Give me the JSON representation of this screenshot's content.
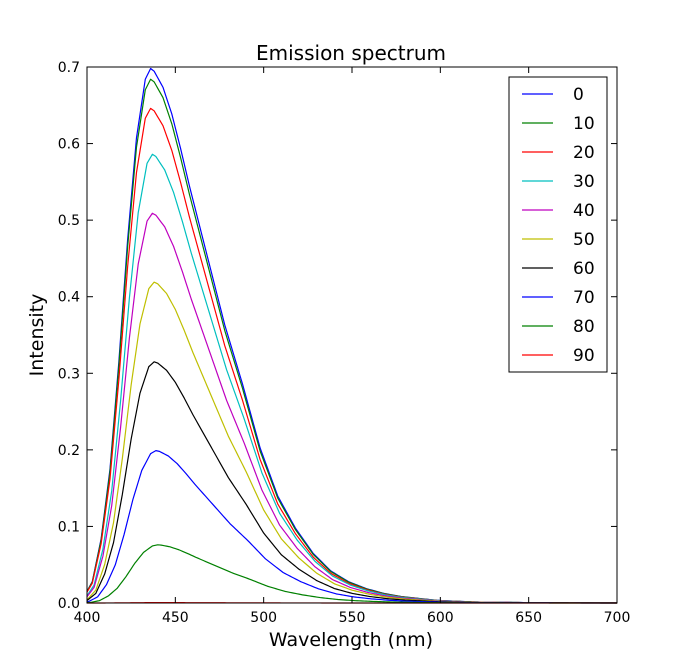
{
  "chart_data": {
    "type": "line",
    "title": "Emission spectrum",
    "xlabel": "Wavelength (nm)",
    "ylabel": "Intensity",
    "xlim": [
      400,
      700
    ],
    "ylim": [
      0.0,
      0.7
    ],
    "xticks": [
      "400",
      "450",
      "500",
      "550",
      "600",
      "650",
      "700"
    ],
    "yticks": [
      "0.0",
      "0.1",
      "0.2",
      "0.3",
      "0.4",
      "0.5",
      "0.6",
      "0.7"
    ],
    "grid": false,
    "legend_position": "top-right",
    "curve_shape": {
      "x": [
        400,
        405,
        410,
        415,
        420,
        425,
        430,
        435,
        438,
        440,
        445,
        450,
        455,
        460,
        470,
        480,
        490,
        500,
        510,
        520,
        530,
        540,
        550,
        560,
        570,
        580,
        600,
        620,
        650,
        680,
        700
      ],
      "ratio": [
        0.01,
        0.04,
        0.12,
        0.25,
        0.45,
        0.68,
        0.87,
        0.98,
        1.0,
        0.995,
        0.965,
        0.915,
        0.85,
        0.78,
        0.65,
        0.52,
        0.41,
        0.29,
        0.2,
        0.14,
        0.093,
        0.06,
        0.04,
        0.027,
        0.018,
        0.012,
        0.005,
        0.002,
        0.0008,
        0.0002,
        0.0001
      ]
    },
    "series": [
      {
        "name": "0",
        "color": "#0000ff",
        "peak": 0.698,
        "peak_x": 436
      },
      {
        "name": "10",
        "color": "#008000",
        "peak": 0.684,
        "peak_x": 436
      },
      {
        "name": "20",
        "color": "#ff0000",
        "peak": 0.646,
        "peak_x": 436
      },
      {
        "name": "30",
        "color": "#00bfbf",
        "peak": 0.586,
        "peak_x": 437
      },
      {
        "name": "40",
        "color": "#bf00bf",
        "peak": 0.509,
        "peak_x": 437
      },
      {
        "name": "50",
        "color": "#bfbf00",
        "peak": 0.419,
        "peak_x": 438
      },
      {
        "name": "60",
        "color": "#000000",
        "peak": 0.315,
        "peak_x": 438
      },
      {
        "name": "70",
        "color": "#0000ff",
        "peak": 0.199,
        "peak_x": 439
      },
      {
        "name": "80",
        "color": "#008000",
        "peak": 0.076,
        "peak_x": 440
      },
      {
        "name": "90",
        "color": "#ff0000",
        "peak": 0.0005,
        "peak_x": 440
      }
    ]
  }
}
